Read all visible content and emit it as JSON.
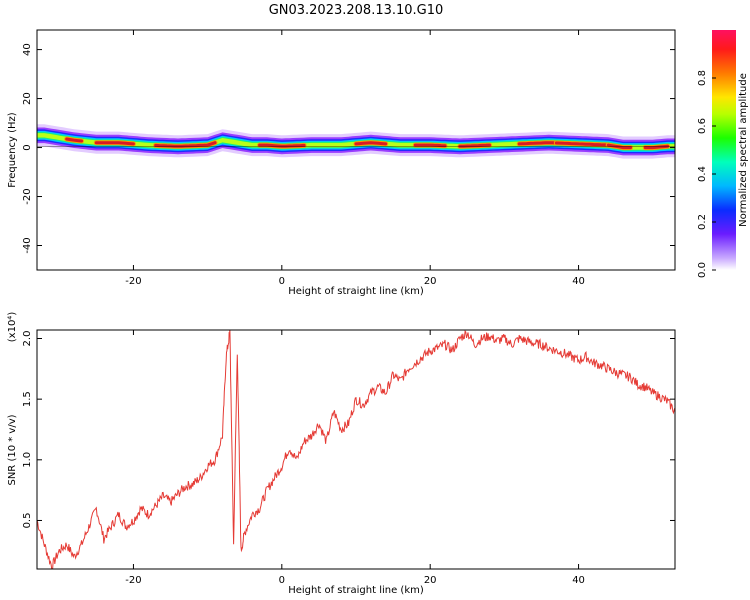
{
  "title": "GN03.2023.208.13.10.G10",
  "colors": {
    "snr_line": "#e53b35",
    "ridge": "#d91a25"
  },
  "chart_data": [
    {
      "type": "heatmap",
      "xlabel": "Height of straight line (km)",
      "ylabel": "Frequency (Hz)",
      "xlim": [
        -33,
        53
      ],
      "ylim": [
        -50,
        48
      ],
      "xticks": [
        "-20",
        "0",
        "20",
        "40"
      ],
      "xtick_values": [
        -20,
        0,
        20,
        40
      ],
      "yticks": [
        "40",
        "20",
        "0",
        "-20",
        "-40"
      ],
      "ytick_values": [
        40,
        20,
        0,
        -20,
        -40
      ],
      "colorbar": {
        "label": "Normalized spectral amplitude",
        "range": [
          0,
          1
        ],
        "ticks": [
          "0.0",
          "0.2",
          "0.4",
          "0.6",
          "0.8"
        ],
        "tick_values": [
          0.0,
          0.2,
          0.4,
          0.6,
          0.8
        ]
      },
      "ridge_frequency": {
        "x": [
          -32,
          -30,
          -28,
          -25,
          -22,
          -18,
          -14,
          -10,
          -8,
          -6,
          -4,
          -2,
          0,
          4,
          8,
          12,
          16,
          20,
          24,
          28,
          32,
          36,
          40,
          44,
          46,
          48,
          50,
          52
        ],
        "y": [
          5,
          4,
          3,
          2,
          2,
          1,
          0.5,
          1,
          3,
          2,
          1,
          1,
          0.5,
          1,
          1,
          2,
          1,
          1,
          0.5,
          1,
          1.5,
          2,
          1.5,
          1,
          0,
          0,
          0,
          0.5
        ]
      }
    },
    {
      "type": "line",
      "xlabel": "Height of straight line (km)",
      "ylabel": "SNR (10 * v/v)",
      "y_multiplier": "(x10⁴)",
      "xlim": [
        -33,
        53
      ],
      "ylim": [
        0.1,
        2.07
      ],
      "xticks": [
        "-20",
        "0",
        "20",
        "40"
      ],
      "xtick_values": [
        -20,
        0,
        20,
        40
      ],
      "yticks": [
        "2.0",
        "1.5",
        "1.0",
        "0.5"
      ],
      "ytick_values": [
        2.0,
        1.5,
        1.0,
        0.5
      ],
      "series": [
        {
          "x": [
            -33,
            -32,
            -31,
            -30,
            -29,
            -28,
            -27,
            -26,
            -25,
            -24,
            -23,
            -22,
            -21,
            -20,
            -19,
            -18,
            -17,
            -16,
            -15,
            -14,
            -13,
            -12,
            -11,
            -10,
            -9,
            -8,
            -7.5,
            -7,
            -6.5,
            -6,
            -5.5,
            -5,
            -4,
            -3,
            -2,
            -1,
            0,
            1,
            2,
            3,
            4,
            5,
            6,
            7,
            8,
            9,
            10,
            11,
            12,
            13,
            14,
            15,
            16,
            17,
            18,
            19,
            20,
            21,
            22,
            23,
            24,
            25,
            26,
            27,
            28,
            29,
            30,
            31,
            32,
            33,
            34,
            35,
            36,
            37,
            38,
            39,
            40,
            41,
            42,
            43,
            44,
            45,
            46,
            47,
            48,
            49,
            50,
            51,
            52,
            53
          ],
          "y": [
            0.5,
            0.3,
            0.12,
            0.25,
            0.3,
            0.2,
            0.3,
            0.45,
            0.6,
            0.35,
            0.45,
            0.55,
            0.45,
            0.5,
            0.6,
            0.55,
            0.62,
            0.7,
            0.65,
            0.72,
            0.78,
            0.8,
            0.85,
            0.95,
            1.0,
            1.2,
            1.85,
            2.05,
            0.3,
            1.9,
            0.25,
            0.4,
            0.55,
            0.6,
            0.75,
            0.85,
            0.95,
            1.1,
            1.0,
            1.15,
            1.2,
            1.3,
            1.15,
            1.4,
            1.25,
            1.3,
            1.5,
            1.45,
            1.55,
            1.6,
            1.55,
            1.7,
            1.65,
            1.75,
            1.8,
            1.85,
            1.9,
            1.92,
            1.95,
            1.9,
            2.0,
            2.05,
            1.95,
            2.0,
            2.02,
            1.98,
            2.0,
            1.95,
            2.0,
            1.98,
            1.96,
            1.95,
            1.92,
            1.9,
            1.88,
            1.85,
            1.82,
            1.85,
            1.8,
            1.78,
            1.75,
            1.72,
            1.7,
            1.68,
            1.62,
            1.6,
            1.55,
            1.52,
            1.48,
            1.4
          ]
        }
      ]
    }
  ]
}
